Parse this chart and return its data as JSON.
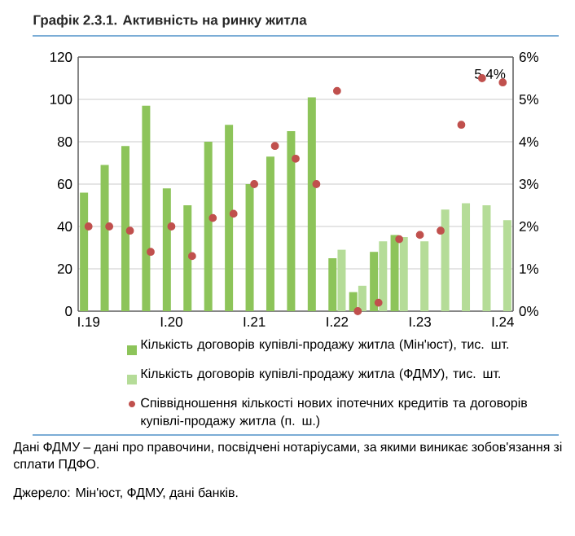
{
  "chart_data": {
    "type": "bar",
    "title": "Графік 2.3.1. Активність на ринку житла",
    "categories": [
      "I.19",
      null,
      null,
      null,
      "I.20",
      null,
      null,
      null,
      "I.21",
      null,
      null,
      null,
      "I.22",
      null,
      null,
      null,
      "I.23",
      null,
      null,
      null,
      "I.24"
    ],
    "series": [
      {
        "name": "Кількість договорів купівлі-продажу житла (Мін'юст), тис. шт.",
        "color": "#8dc45a",
        "values": [
          56,
          69,
          78,
          97,
          58,
          50,
          80,
          88,
          60,
          73,
          85,
          101,
          25,
          9,
          28,
          36,
          null,
          null,
          null,
          null,
          null
        ]
      },
      {
        "name": "Кількість договорів купівлі-продажу житла (ФДМУ), тис. шт.",
        "color": "#b5dc98",
        "values": [
          null,
          null,
          null,
          null,
          null,
          null,
          null,
          null,
          null,
          null,
          null,
          null,
          29,
          12,
          33,
          35,
          33,
          48,
          51,
          50,
          43
        ]
      },
      {
        "name": "Співвідношення кількості нових іпотечних кредитів та договорів купівлі-продажу житла (п. ш.)",
        "type": "scatter",
        "axis": "y2",
        "color": "#c0504d",
        "values": [
          2.0,
          2.0,
          1.9,
          1.4,
          2.0,
          1.3,
          2.2,
          2.3,
          3.0,
          3.9,
          3.6,
          3.0,
          5.2,
          0.0,
          0.2,
          1.7,
          1.8,
          1.9,
          4.4,
          5.5,
          5.4
        ],
        "value_labels": [
          null,
          null,
          null,
          null,
          null,
          null,
          null,
          null,
          null,
          null,
          null,
          null,
          null,
          null,
          null,
          null,
          null,
          null,
          null,
          null,
          "5.4%"
        ]
      }
    ],
    "ylim": [
      0,
      120
    ],
    "yticks": [
      0,
      20,
      40,
      60,
      80,
      100,
      120
    ],
    "y2lim": [
      0,
      6
    ],
    "y2ticks": [
      {
        "value": 0,
        "label": "0%"
      },
      {
        "value": 1,
        "label": "1%"
      },
      {
        "value": 2,
        "label": "2%"
      },
      {
        "value": 3,
        "label": "3%"
      },
      {
        "value": 4,
        "label": "4%"
      },
      {
        "value": 5,
        "label": "5%"
      },
      {
        "value": 6,
        "label": "6%"
      }
    ],
    "grid": "y",
    "legend": "bottom",
    "annotations": [
      "Дані ФДМУ – дані про правочини, посвідчені нотаріусами, за якими виникає зобов'язання зі сплати ПДФО.",
      "Джерело: Мін'юст, ФДМУ, дані банків."
    ]
  }
}
